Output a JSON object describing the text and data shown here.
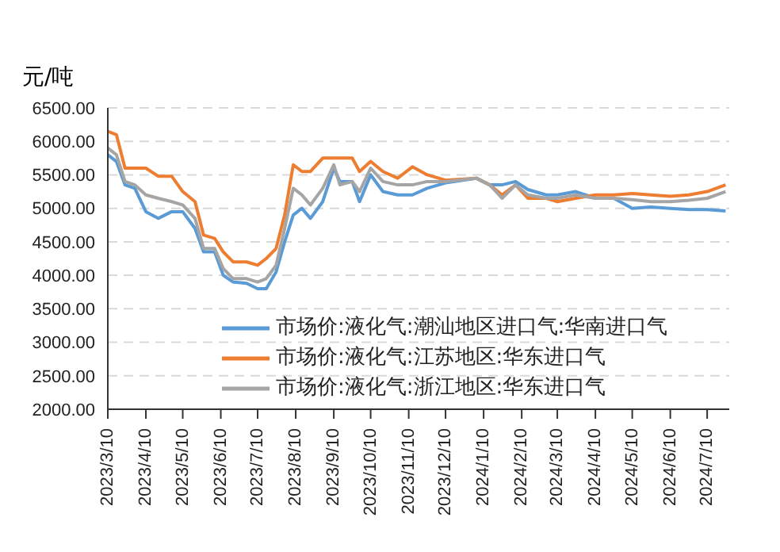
{
  "chart_data": {
    "type": "line",
    "ylabel": "元/吨",
    "x": [
      "2023-03-10",
      "2023-03-17",
      "2023-03-24",
      "2023-04-01",
      "2023-04-10",
      "2023-04-20",
      "2023-05-01",
      "2023-05-10",
      "2023-05-20",
      "2023-05-27",
      "2023-06-05",
      "2023-06-12",
      "2023-06-20",
      "2023-07-01",
      "2023-07-10",
      "2023-07-17",
      "2023-07-25",
      "2023-08-01",
      "2023-08-08",
      "2023-08-15",
      "2023-08-22",
      "2023-09-01",
      "2023-09-10",
      "2023-09-15",
      "2023-09-25",
      "2023-10-01",
      "2023-10-10",
      "2023-10-20",
      "2023-11-01",
      "2023-11-13",
      "2023-11-25",
      "2023-12-10",
      "2024-01-04",
      "2024-01-15",
      "2024-01-25",
      "2024-02-05",
      "2024-02-15",
      "2024-03-01",
      "2024-03-10",
      "2024-03-25",
      "2024-04-10",
      "2024-04-25",
      "2024-05-10",
      "2024-05-25",
      "2024-06-10",
      "2024-06-25",
      "2024-07-10",
      "2024-07-25"
    ],
    "series": [
      {
        "name": "市场价:液化气:潮汕地区进口气:华南进口气",
        "color": "#5b9bd5",
        "values": [
          5800,
          5700,
          5350,
          5300,
          4950,
          4850,
          4950,
          4950,
          4700,
          4350,
          4350,
          4000,
          3900,
          3880,
          3800,
          3800,
          4050,
          4500,
          4900,
          5000,
          4850,
          5100,
          5600,
          5400,
          5400,
          5100,
          5500,
          5250,
          5200,
          5200,
          5300,
          5380,
          5450,
          5350,
          5350,
          5400,
          5280,
          5200,
          5200,
          5250,
          5150,
          5150,
          5000,
          5020,
          5000,
          4980,
          4980,
          4960
        ]
      },
      {
        "name": "市场价:液化气:江苏地区:华东进口气",
        "color": "#ed7d31",
        "values": [
          6150,
          6100,
          5600,
          5600,
          5600,
          5480,
          5480,
          5250,
          5100,
          4600,
          4550,
          4350,
          4200,
          4200,
          4150,
          4250,
          4400,
          4900,
          5650,
          5550,
          5550,
          5750,
          5750,
          5750,
          5750,
          5550,
          5700,
          5550,
          5450,
          5620,
          5500,
          5420,
          5450,
          5350,
          5200,
          5350,
          5150,
          5150,
          5100,
          5150,
          5200,
          5200,
          5220,
          5200,
          5180,
          5200,
          5250,
          5350
        ]
      },
      {
        "name": "市场价:液化气:浙江地区:华东进口气",
        "color": "#a5a5a5",
        "values": [
          5900,
          5800,
          5400,
          5350,
          5200,
          5150,
          5100,
          5050,
          4850,
          4400,
          4400,
          4100,
          3950,
          3950,
          3900,
          3950,
          4150,
          4700,
          5300,
          5200,
          5050,
          5300,
          5650,
          5350,
          5400,
          5250,
          5600,
          5400,
          5350,
          5350,
          5400,
          5400,
          5450,
          5350,
          5150,
          5350,
          5200,
          5150,
          5150,
          5200,
          5150,
          5150,
          5130,
          5100,
          5100,
          5120,
          5150,
          5250
        ]
      }
    ],
    "xlim": [
      "2023-03-10",
      "2024-07-28"
    ],
    "xticks": [
      {
        "value": "2023-03-10",
        "label": "2023/3/10"
      },
      {
        "value": "2023-04-10",
        "label": "2023/4/10"
      },
      {
        "value": "2023-05-10",
        "label": "2023/5/10"
      },
      {
        "value": "2023-06-10",
        "label": "2023/6/10"
      },
      {
        "value": "2023-07-10",
        "label": "2023/7/10"
      },
      {
        "value": "2023-08-10",
        "label": "2023/8/10"
      },
      {
        "value": "2023-09-10",
        "label": "2023/9/10"
      },
      {
        "value": "2023-10-10",
        "label": "2023/10/10"
      },
      {
        "value": "2023-11-10",
        "label": "2023/11/10"
      },
      {
        "value": "2023-12-10",
        "label": "2023/12/10"
      },
      {
        "value": "2024-01-10",
        "label": "2024/1/10"
      },
      {
        "value": "2024-02-10",
        "label": "2024/2/10"
      },
      {
        "value": "2024-03-10",
        "label": "2024/3/10"
      },
      {
        "value": "2024-04-10",
        "label": "2024/4/10"
      },
      {
        "value": "2024-05-10",
        "label": "2024/5/10"
      },
      {
        "value": "2024-06-10",
        "label": "2024/6/10"
      },
      {
        "value": "2024-07-10",
        "label": "2024/7/10"
      }
    ],
    "ylim": [
      2000,
      6500
    ],
    "yticks": [
      {
        "value": 2000,
        "label": "2000.00"
      },
      {
        "value": 2500,
        "label": "2500.00"
      },
      {
        "value": 3000,
        "label": "3000.00"
      },
      {
        "value": 3500,
        "label": "3500.00"
      },
      {
        "value": 4000,
        "label": "4000.00"
      },
      {
        "value": 4500,
        "label": "4500.00"
      },
      {
        "value": 5000,
        "label": "5000.00"
      },
      {
        "value": 5500,
        "label": "5500.00"
      },
      {
        "value": 6000,
        "label": "6000.00"
      },
      {
        "value": 6500,
        "label": "6500.00"
      }
    ],
    "grid": "y",
    "legend": "bottom right",
    "marker": "none",
    "line_style": "solid"
  }
}
